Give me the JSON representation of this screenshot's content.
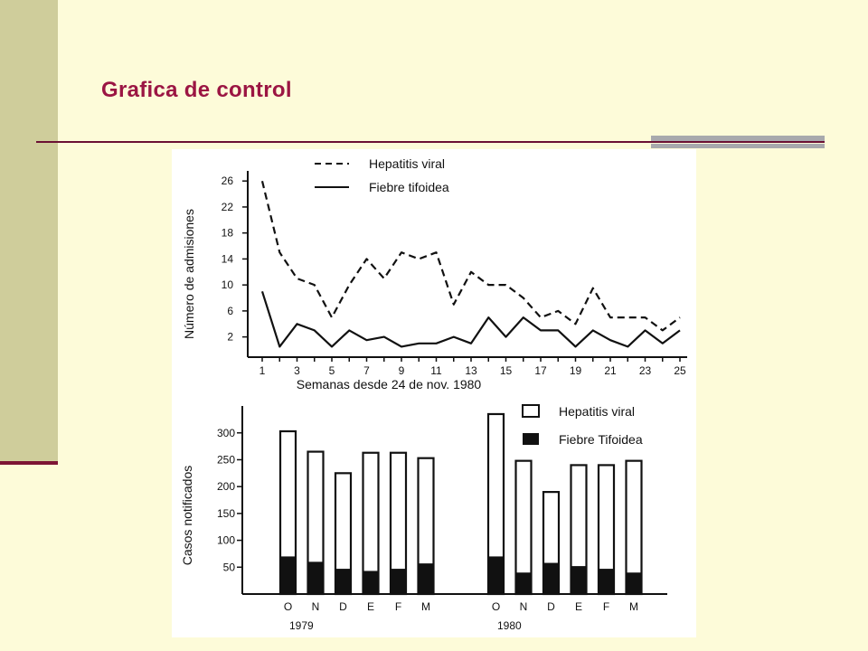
{
  "title": "Grafica de control",
  "colors": {
    "background": "#fdfbd9",
    "sidebar": "#cfcd9b",
    "accent": "#9b1543",
    "rule": "#6b1033",
    "grey_bar": "#a8a9ad"
  },
  "chart_data": [
    {
      "type": "line",
      "xlabel": "Semanas desde 24 de nov. 1980",
      "ylabel": "Número de admisiones",
      "x": [
        1,
        2,
        3,
        4,
        5,
        6,
        7,
        8,
        9,
        10,
        11,
        12,
        13,
        14,
        15,
        16,
        17,
        18,
        19,
        20,
        21,
        22,
        23,
        24,
        25
      ],
      "x_ticks": [
        1,
        3,
        5,
        7,
        9,
        11,
        13,
        15,
        17,
        19,
        21,
        23,
        25
      ],
      "y_ticks": [
        2,
        6,
        10,
        14,
        18,
        22,
        26
      ],
      "ylim": [
        0,
        27
      ],
      "series": [
        {
          "name": "Hepatitis viral",
          "style": "dashed",
          "values": [
            26,
            15,
            11,
            10,
            5,
            10,
            14,
            11,
            15,
            14,
            15,
            7,
            12,
            10,
            10,
            8,
            5,
            6,
            4,
            9.5,
            5,
            5,
            5,
            3,
            5
          ]
        },
        {
          "name": "Fiebre tifoidea",
          "style": "solid",
          "values": [
            9,
            0.5,
            4,
            3,
            0.5,
            3,
            1.5,
            2,
            0.5,
            1,
            1,
            2,
            1,
            5,
            2,
            5,
            3,
            3,
            0.5,
            3,
            1.5,
            0.5,
            3,
            1,
            3
          ]
        }
      ]
    },
    {
      "type": "bar",
      "ylabel": "Casos notificados",
      "y_ticks": [
        50,
        100,
        150,
        200,
        250,
        300
      ],
      "ylim": [
        0,
        340
      ],
      "groups": [
        {
          "label": "1979",
          "categories": [
            "O",
            "N",
            "D",
            "E",
            "F",
            "M"
          ]
        },
        {
          "label": "1980",
          "categories": [
            "O",
            "N",
            "D",
            "E",
            "F",
            "M"
          ]
        }
      ],
      "series": [
        {
          "name": "Hepatitis viral",
          "fill": "white",
          "values": [
            303,
            265,
            225,
            263,
            263,
            253,
            335,
            248,
            190,
            240,
            240,
            248
          ]
        },
        {
          "name": "Fiebre Tifoidea",
          "fill": "black",
          "values": [
            70,
            60,
            47,
            43,
            47,
            57,
            70,
            40,
            58,
            52,
            47,
            40
          ]
        }
      ]
    }
  ]
}
